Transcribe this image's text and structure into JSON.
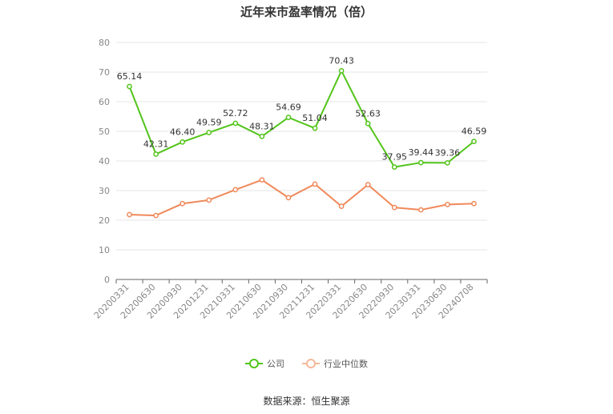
{
  "chart_data": {
    "type": "line",
    "title": "近年来市盈率情况（倍）",
    "xlabel": "",
    "ylabel": "",
    "ylim": [
      0,
      80
    ],
    "yticks": [
      "0",
      "10",
      "20",
      "30",
      "40",
      "50",
      "60",
      "70",
      "80"
    ],
    "grid": true,
    "legend_position": "bottom",
    "categories": [
      "20200331",
      "20200630",
      "20200930",
      "20201231",
      "20210331",
      "20210630",
      "20210930",
      "20211231",
      "20220331",
      "20220630",
      "20220930",
      "20230331",
      "20230630",
      "20240708"
    ],
    "series": [
      {
        "name": "公司",
        "color": "#52c41a",
        "values": [
          65.14,
          42.31,
          46.4,
          49.59,
          52.72,
          48.31,
          54.69,
          51.04,
          70.43,
          52.63,
          37.95,
          39.44,
          39.36,
          46.59
        ],
        "labels": [
          "65.14",
          "42.31",
          "46.40",
          "49.59",
          "52.72",
          "48.31",
          "54.69",
          "51.04",
          "70.43",
          "52.63",
          "37.95",
          "39.44",
          "39.36",
          "46.59"
        ]
      },
      {
        "name": "行业中位数",
        "color": "#f0895a",
        "values": [
          21.9,
          21.6,
          25.6,
          26.8,
          30.3,
          33.6,
          27.6,
          32.2,
          24.7,
          32.0,
          24.3,
          23.5,
          25.3,
          25.6
        ]
      }
    ]
  },
  "source_text": "数据来源：恒生聚源"
}
